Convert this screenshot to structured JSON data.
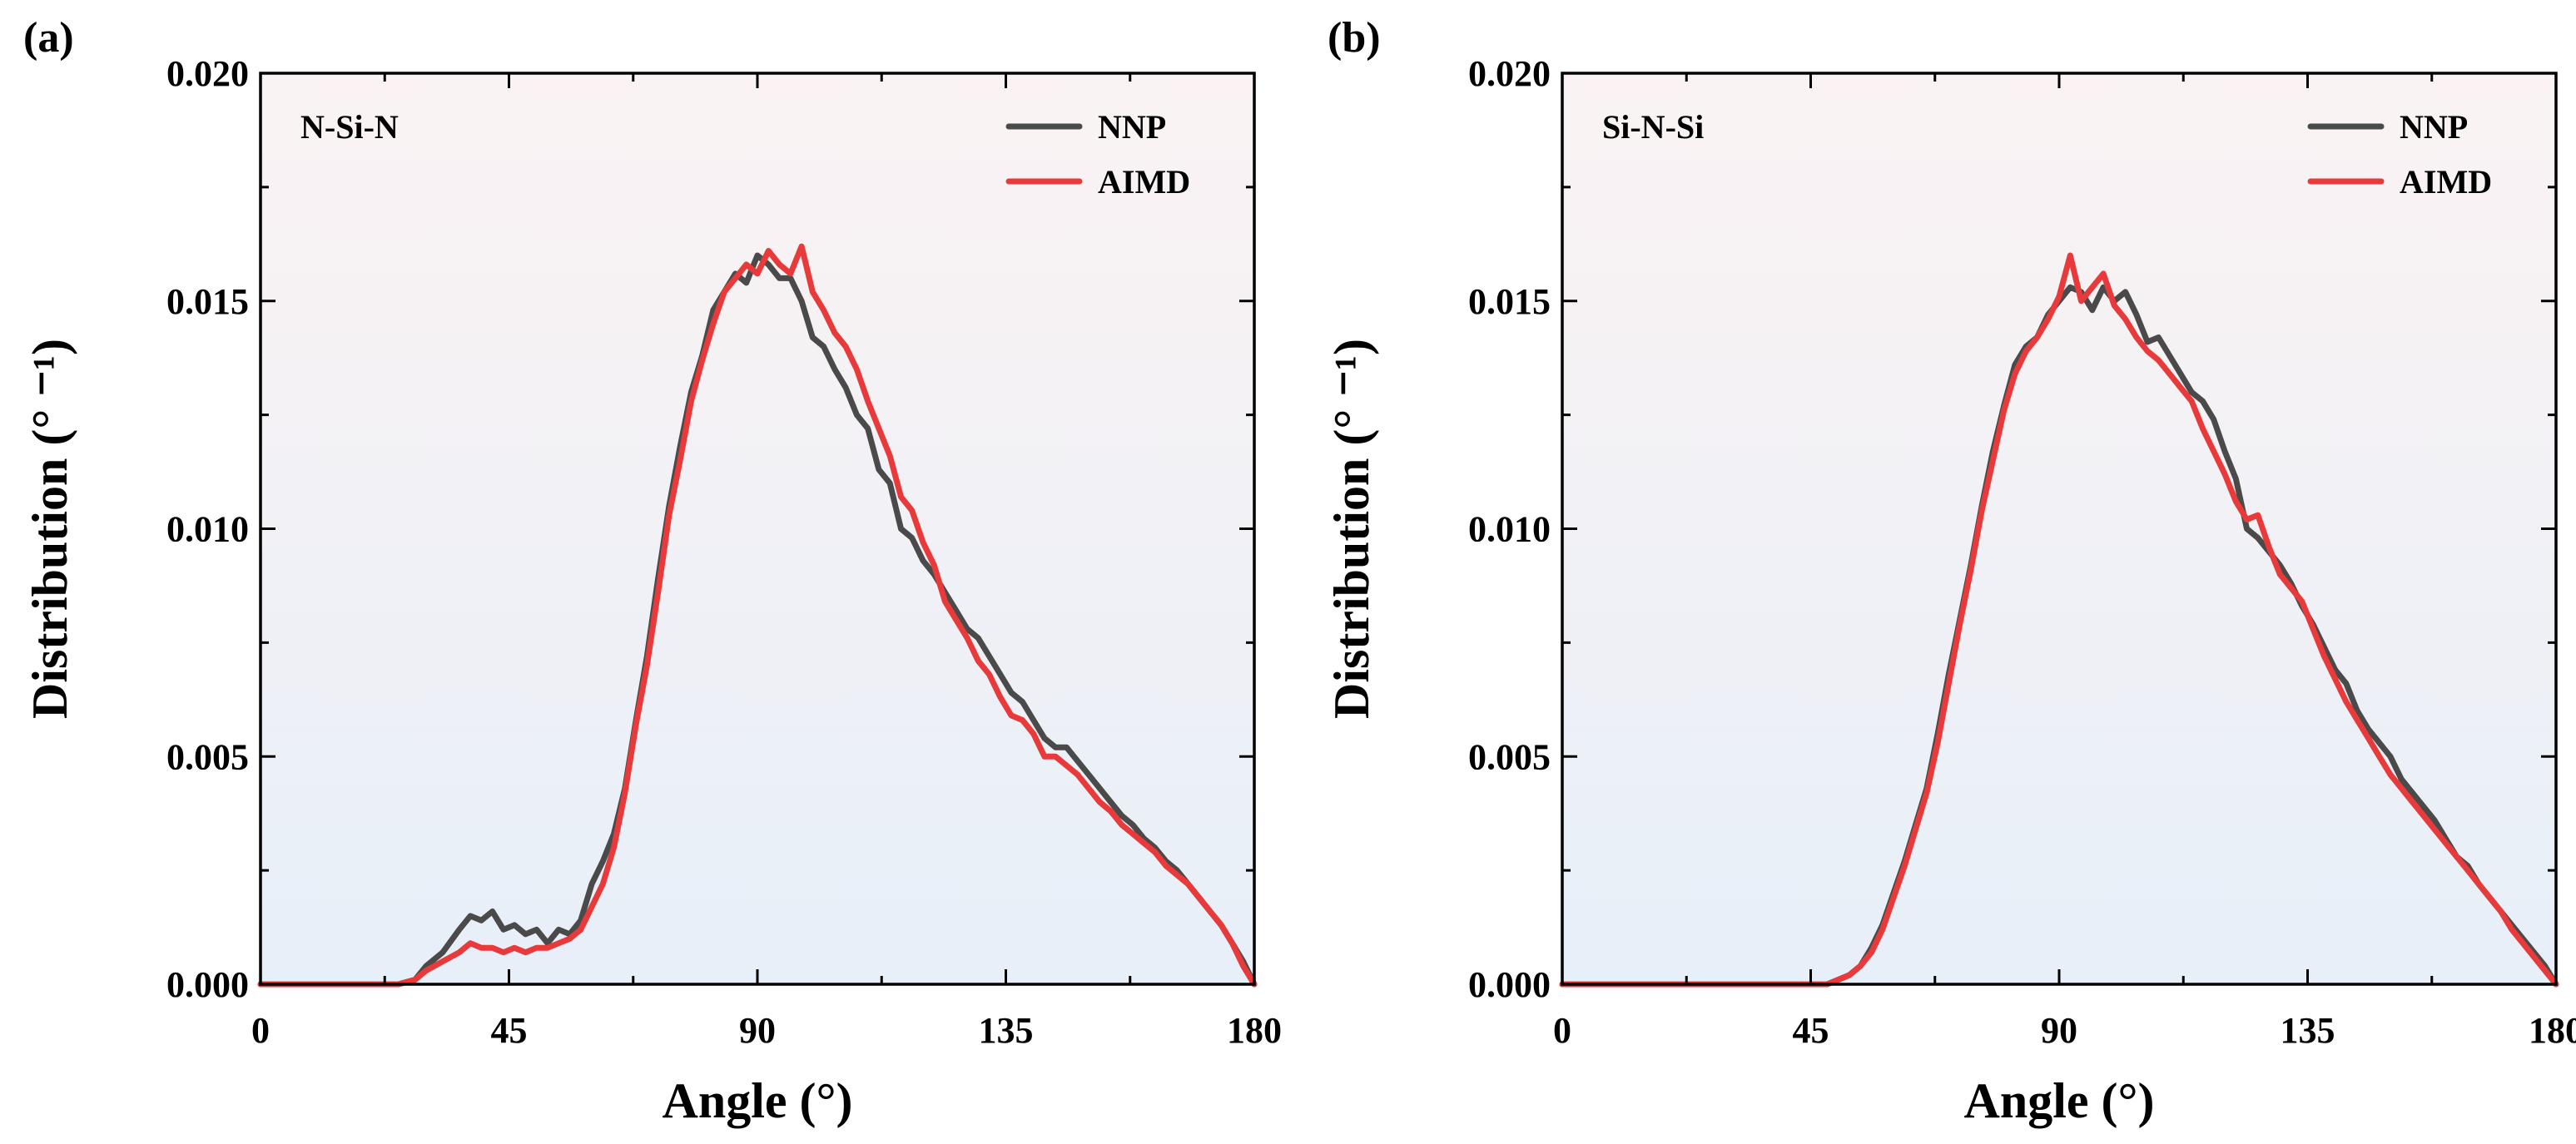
{
  "colors": {
    "nnp": "#4a4a4a",
    "aimd": "#e83a3a",
    "bg_top": "#fbf3f3",
    "bg_bottom": "#e7eff8"
  },
  "chart_data": [
    {
      "type": "line",
      "panel": "(a)",
      "label": "N-Si-N",
      "xlabel": "Angle (°)",
      "ylabel": "Distribution (° ⁻¹)",
      "xlim": [
        0,
        180
      ],
      "ylim": [
        0,
        0.02
      ],
      "xticks": [
        0,
        45,
        90,
        135,
        180
      ],
      "xtick_labels": [
        "0",
        "45",
        "90",
        "135",
        "180"
      ],
      "yticks": [
        0,
        0.005,
        0.01,
        0.015,
        0.02
      ],
      "ytick_labels": [
        "0.000",
        "0.005",
        "0.010",
        "0.015",
        "0.020"
      ],
      "legend_position": "top-right",
      "series": [
        {
          "name": "NNP",
          "color_key": "nnp",
          "x": [
            0,
            25,
            28,
            30,
            33,
            36,
            38,
            40,
            42,
            44,
            46,
            48,
            50,
            52,
            54,
            56,
            58,
            60,
            62,
            64,
            66,
            68,
            70,
            72,
            74,
            76,
            78,
            80,
            82,
            84,
            86,
            88,
            90,
            92,
            94,
            96,
            98,
            100,
            102,
            104,
            106,
            108,
            110,
            112,
            114,
            116,
            118,
            120,
            122,
            124,
            126,
            128,
            130,
            132,
            134,
            136,
            138,
            140,
            142,
            144,
            146,
            148,
            150,
            152,
            154,
            156,
            158,
            160,
            162,
            164,
            166,
            168,
            170,
            172,
            174,
            176,
            178,
            180
          ],
          "values": [
            0,
            0,
            0.0001,
            0.0004,
            0.0007,
            0.0012,
            0.0015,
            0.0014,
            0.0016,
            0.0012,
            0.0013,
            0.0011,
            0.0012,
            0.0009,
            0.0012,
            0.0011,
            0.0014,
            0.0022,
            0.0027,
            0.0033,
            0.0043,
            0.0058,
            0.0072,
            0.0089,
            0.0105,
            0.0118,
            0.013,
            0.0138,
            0.0148,
            0.0152,
            0.0156,
            0.0154,
            0.016,
            0.0158,
            0.0155,
            0.0155,
            0.015,
            0.0142,
            0.014,
            0.0135,
            0.0131,
            0.0125,
            0.0122,
            0.0113,
            0.011,
            0.01,
            0.0098,
            0.0093,
            0.009,
            0.0086,
            0.0082,
            0.0078,
            0.0076,
            0.0072,
            0.0068,
            0.0064,
            0.0062,
            0.0058,
            0.0054,
            0.0052,
            0.0052,
            0.0049,
            0.0046,
            0.0043,
            0.004,
            0.0037,
            0.0035,
            0.0032,
            0.003,
            0.0027,
            0.0025,
            0.0022,
            0.0019,
            0.0016,
            0.0013,
            0.0009,
            0.0005,
            0
          ]
        },
        {
          "name": "AIMD",
          "color_key": "aimd",
          "x": [
            0,
            25,
            28,
            30,
            33,
            36,
            38,
            40,
            42,
            44,
            46,
            48,
            50,
            52,
            54,
            56,
            58,
            60,
            62,
            64,
            66,
            68,
            70,
            72,
            74,
            76,
            78,
            80,
            82,
            84,
            86,
            88,
            90,
            92,
            94,
            96,
            98,
            100,
            102,
            104,
            106,
            108,
            110,
            112,
            114,
            116,
            118,
            120,
            122,
            124,
            126,
            128,
            130,
            132,
            134,
            136,
            138,
            140,
            142,
            144,
            146,
            148,
            150,
            152,
            154,
            156,
            158,
            160,
            162,
            164,
            166,
            168,
            170,
            172,
            174,
            176,
            178,
            180
          ],
          "values": [
            0,
            0,
            0.0001,
            0.0003,
            0.0005,
            0.0007,
            0.0009,
            0.0008,
            0.0008,
            0.0007,
            0.0008,
            0.0007,
            0.0008,
            0.0008,
            0.0009,
            0.001,
            0.0012,
            0.0017,
            0.0022,
            0.003,
            0.0042,
            0.0057,
            0.007,
            0.0086,
            0.0103,
            0.0115,
            0.0128,
            0.0137,
            0.0145,
            0.0152,
            0.0155,
            0.0158,
            0.0156,
            0.0161,
            0.0158,
            0.0156,
            0.0162,
            0.0152,
            0.0148,
            0.0143,
            0.014,
            0.0135,
            0.0128,
            0.0122,
            0.0116,
            0.0107,
            0.0104,
            0.0097,
            0.0092,
            0.0084,
            0.008,
            0.0076,
            0.0071,
            0.0068,
            0.0063,
            0.0059,
            0.0058,
            0.0055,
            0.005,
            0.005,
            0.0048,
            0.0046,
            0.0043,
            0.004,
            0.0038,
            0.0035,
            0.0033,
            0.0031,
            0.0029,
            0.0026,
            0.0024,
            0.0022,
            0.0019,
            0.0016,
            0.0013,
            0.0009,
            0.0004,
            0
          ]
        }
      ]
    },
    {
      "type": "line",
      "panel": "(b)",
      "label": "Si-N-Si",
      "xlabel": "Angle (°)",
      "ylabel": "Distribution (° ⁻¹)",
      "xlim": [
        0,
        180
      ],
      "ylim": [
        0,
        0.02
      ],
      "xticks": [
        0,
        45,
        90,
        135,
        180
      ],
      "xtick_labels": [
        "0",
        "45",
        "90",
        "135",
        "180"
      ],
      "yticks": [
        0,
        0.005,
        0.01,
        0.015,
        0.02
      ],
      "ytick_labels": [
        "0.000",
        "0.005",
        "0.010",
        "0.015",
        "0.020"
      ],
      "legend_position": "top-right",
      "series": [
        {
          "name": "NNP",
          "color_key": "nnp",
          "x": [
            0,
            48,
            50,
            52,
            54,
            56,
            58,
            60,
            62,
            64,
            66,
            68,
            70,
            72,
            74,
            76,
            78,
            80,
            82,
            84,
            86,
            88,
            90,
            92,
            94,
            96,
            98,
            100,
            102,
            104,
            106,
            108,
            110,
            112,
            114,
            116,
            118,
            120,
            122,
            124,
            126,
            128,
            130,
            132,
            134,
            136,
            138,
            140,
            142,
            144,
            146,
            148,
            150,
            152,
            154,
            156,
            158,
            160,
            162,
            164,
            166,
            168,
            170,
            172,
            174,
            176,
            178,
            180
          ],
          "values": [
            0,
            0,
            0.0001,
            0.0002,
            0.0004,
            0.0008,
            0.0013,
            0.002,
            0.0027,
            0.0035,
            0.0043,
            0.0055,
            0.0068,
            0.008,
            0.0092,
            0.0105,
            0.0117,
            0.0127,
            0.0136,
            0.014,
            0.0142,
            0.0147,
            0.015,
            0.0153,
            0.0152,
            0.0148,
            0.0153,
            0.015,
            0.0152,
            0.0147,
            0.0141,
            0.0142,
            0.0138,
            0.0134,
            0.013,
            0.0128,
            0.0124,
            0.0117,
            0.0111,
            0.01,
            0.0098,
            0.0095,
            0.0092,
            0.0088,
            0.0083,
            0.0079,
            0.0074,
            0.0069,
            0.0066,
            0.006,
            0.0056,
            0.0053,
            0.005,
            0.0045,
            0.0042,
            0.0039,
            0.0036,
            0.0032,
            0.0028,
            0.0026,
            0.0022,
            0.0019,
            0.0016,
            0.0013,
            0.001,
            0.0007,
            0.0004,
            0
          ]
        },
        {
          "name": "AIMD",
          "color_key": "aimd",
          "x": [
            0,
            48,
            50,
            52,
            54,
            56,
            58,
            60,
            62,
            64,
            66,
            68,
            70,
            72,
            74,
            76,
            78,
            80,
            82,
            84,
            86,
            88,
            90,
            92,
            94,
            96,
            98,
            100,
            102,
            104,
            106,
            108,
            110,
            112,
            114,
            116,
            118,
            120,
            122,
            124,
            126,
            128,
            130,
            132,
            134,
            136,
            138,
            140,
            142,
            144,
            146,
            148,
            150,
            152,
            154,
            156,
            158,
            160,
            162,
            164,
            166,
            168,
            170,
            172,
            174,
            176,
            178,
            180
          ],
          "values": [
            0,
            0,
            0.0001,
            0.0002,
            0.0004,
            0.0007,
            0.0012,
            0.0019,
            0.0026,
            0.0034,
            0.0042,
            0.0053,
            0.0066,
            0.0079,
            0.0091,
            0.0104,
            0.0115,
            0.0126,
            0.0134,
            0.0139,
            0.0142,
            0.0146,
            0.0151,
            0.016,
            0.015,
            0.0153,
            0.0156,
            0.0149,
            0.0146,
            0.0142,
            0.0139,
            0.0137,
            0.0134,
            0.0131,
            0.0128,
            0.0122,
            0.0117,
            0.0112,
            0.0106,
            0.0102,
            0.0103,
            0.0096,
            0.009,
            0.0087,
            0.0084,
            0.0078,
            0.0072,
            0.0067,
            0.0062,
            0.0058,
            0.0054,
            0.005,
            0.0046,
            0.0043,
            0.004,
            0.0037,
            0.0034,
            0.0031,
            0.0028,
            0.0025,
            0.0022,
            0.0019,
            0.0016,
            0.0012,
            0.0009,
            0.0006,
            0.0003,
            0
          ]
        }
      ]
    }
  ]
}
